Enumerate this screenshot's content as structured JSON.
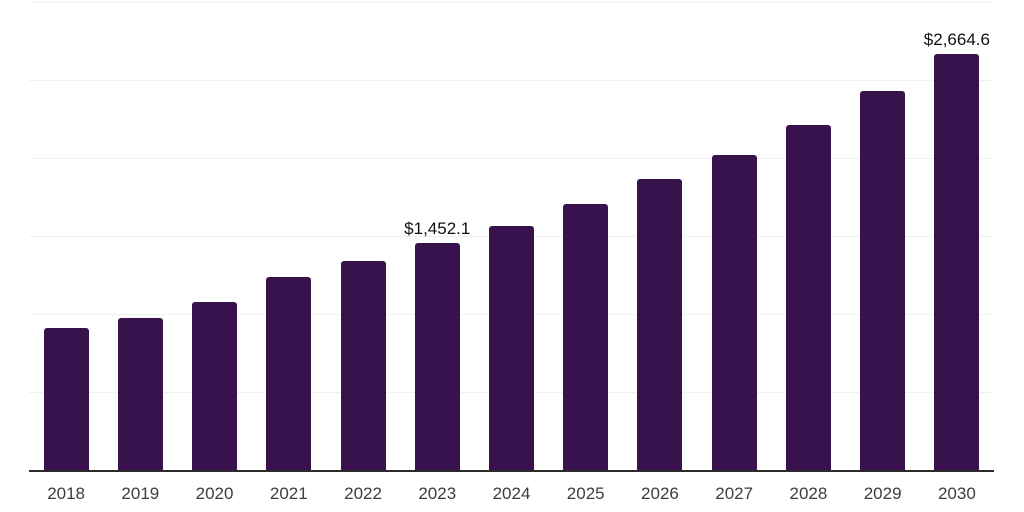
{
  "chart_data": {
    "type": "bar",
    "title": "",
    "xlabel": "",
    "ylabel": "",
    "categories": [
      "2018",
      "2019",
      "2020",
      "2021",
      "2022",
      "2023",
      "2024",
      "2025",
      "2026",
      "2027",
      "2028",
      "2029",
      "2030"
    ],
    "values": [
      913,
      974,
      1076,
      1240,
      1340,
      1452.1,
      1565,
      1703,
      1866,
      2021,
      2210,
      2429,
      2664.6
    ],
    "data_labels": {
      "2023": "$1,452.1",
      "2030": "$2,664.6"
    },
    "ylim": [
      0,
      3000
    ],
    "grid_step": 500,
    "grid": "horizontal-only",
    "legend": "none"
  },
  "colors": {
    "background": "#ffffff",
    "bar": "#37124d",
    "gridline": "#f0f0f0",
    "axis": "#2b2b2b",
    "tick_label": "#3d3d3d",
    "data_label": "#111111"
  }
}
